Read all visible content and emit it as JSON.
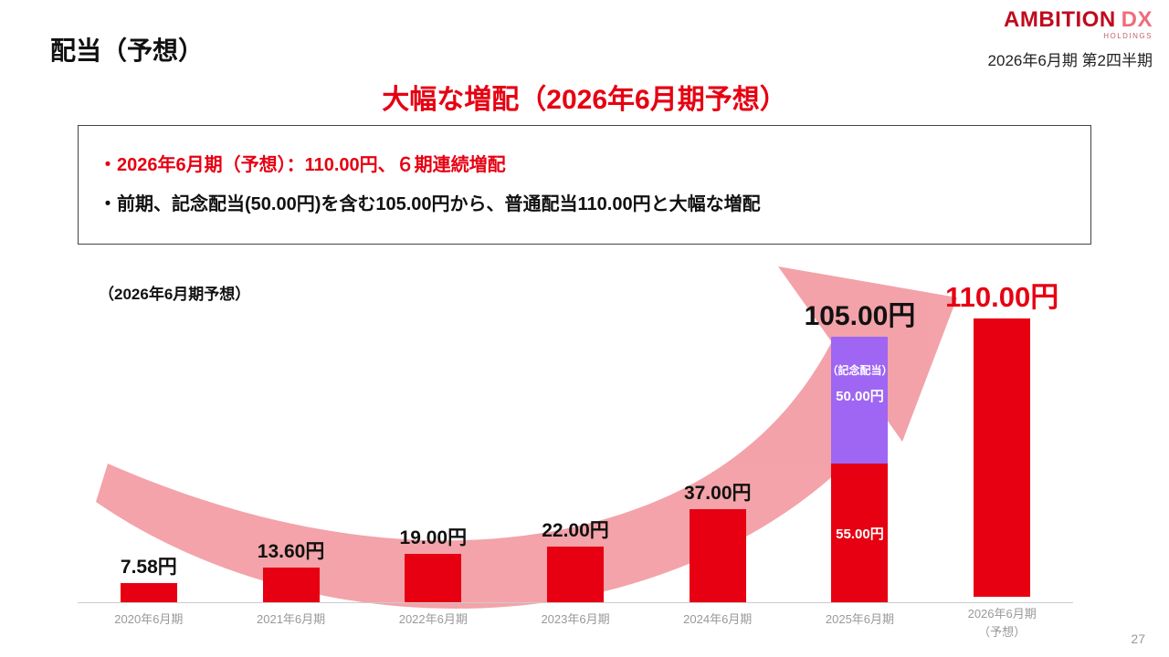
{
  "slide": {
    "title": "配当（予想）",
    "fiscal_period": "2026年6月期 第2四半期",
    "page_number": "27",
    "logo": {
      "brand": "AMBITION",
      "brand_suffix": "DX",
      "sub": "HOLDINGS"
    }
  },
  "headline": "大幅な増配（2026年6月期予想）",
  "summary_box": {
    "line1": "・2026年6月期（予想）：110.00円、６期連続増配",
    "line2": "・前期、記念配当(50.00円)を含む105.00円から、普通配当110.00円と大幅な増配"
  },
  "chart_note": "（2026年6月期予想）",
  "chart_data": {
    "type": "bar",
    "unit": "円",
    "categories": [
      "2020年6月期",
      "2021年6月期",
      "2022年6月期",
      "2023年6月期",
      "2024年6月期",
      "2025年6月期",
      "2026年6月期"
    ],
    "forecast_suffix": "（予想）",
    "values": [
      7.58,
      13.6,
      19.0,
      22.0,
      37.0,
      105.0,
      110.0
    ],
    "value_labels": [
      "7.58円",
      "13.60円",
      "19.00円",
      "22.00円",
      "37.00円",
      "105.00円",
      "110.00円"
    ],
    "stack_2025": {
      "ordinary_value": 55.0,
      "ordinary_label": "55.00円",
      "commemorative_value": 50.0,
      "commemorative_label": "50.00円",
      "commemorative_caption": "（記念配当）"
    },
    "ylim": [
      0,
      133
    ],
    "grid": false,
    "legend": "none",
    "colors": {
      "bar_red": "#e60012",
      "commemorative_purple": "#9e66f2",
      "arrow_pink": "#ef7f88",
      "accent_red_text": "#e60012",
      "axis_gray": "#999999"
    }
  }
}
